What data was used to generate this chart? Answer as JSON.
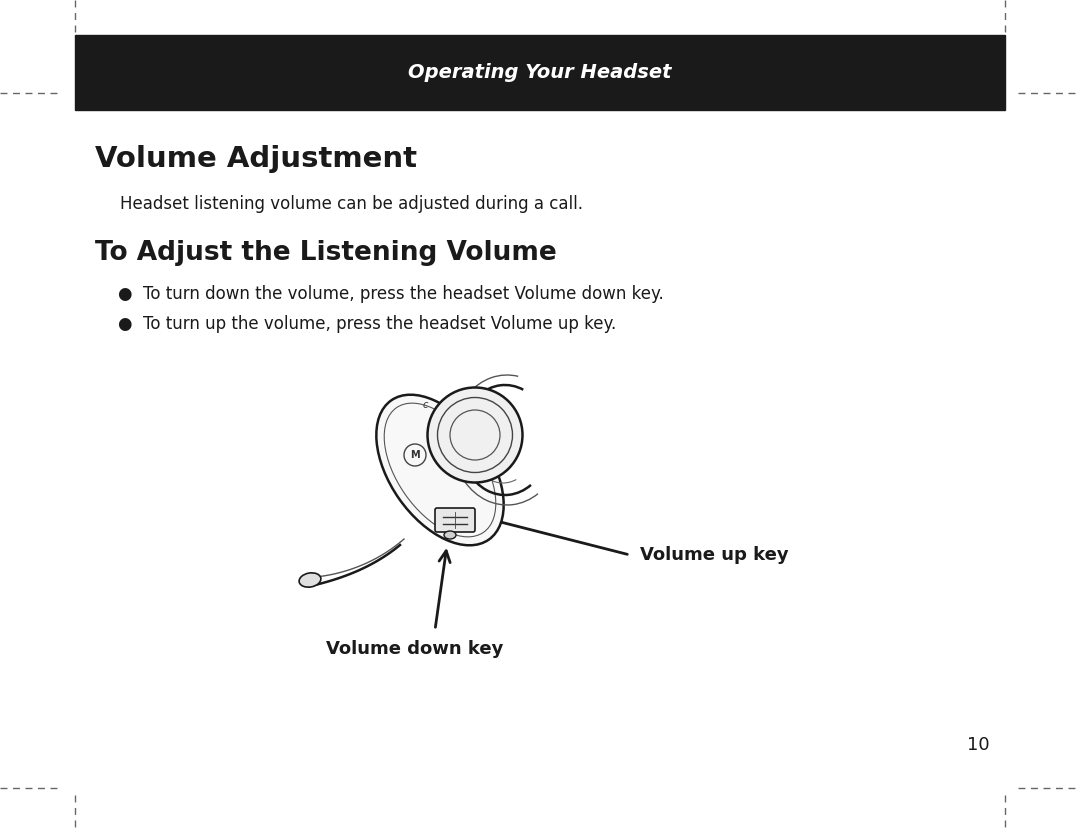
{
  "bg_color": "#ffffff",
  "header_bg": "#1a1a1a",
  "header_text": "Operating Your Headset",
  "header_text_color": "#ffffff",
  "header_font_size": 14,
  "title1": "Volume Adjustment",
  "title1_font_size": 21,
  "subtitle1": "Headset listening volume can be adjusted during a call.",
  "subtitle1_font_size": 12,
  "title2": "To Adjust the Listening Volume",
  "title2_font_size": 19,
  "bullet1": "To turn down the volume, press the headset Volume down key.",
  "bullet2": "To turn up the volume, press the headset Volume up key.",
  "bullet_font_size": 12,
  "label_up": "Volume up key",
  "label_down": "Volume down key",
  "label_font_size": 13,
  "page_number": "10",
  "page_number_font_size": 13,
  "dash_color": "#666666",
  "text_color": "#1a1a1a"
}
